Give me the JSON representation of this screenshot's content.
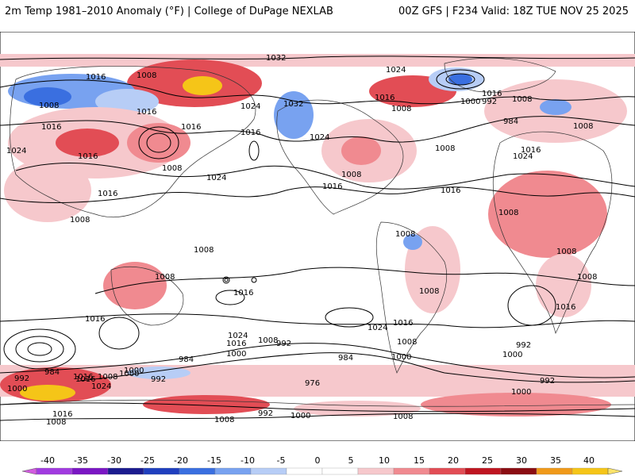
{
  "header": {
    "left_title": "2m Temp 1981–2010 Anomaly (°F) | College of DuPage NEXLAB",
    "right_title": "00Z GFS | F234 Valid: 18Z TUE NOV 25 2025"
  },
  "map": {
    "variable": "2m temperature anomaly",
    "units": "°F",
    "contour_field": "sea level pressure (mb)",
    "isobar_labels": [
      "1032",
      "1016",
      "1008",
      "1016",
      "1032",
      "1024",
      "1024",
      "1016",
      "1000",
      "992",
      "1008",
      "1008",
      "1016",
      "1016",
      "1016",
      "1024",
      "1024",
      "1016",
      "1008",
      "1016",
      "1008",
      "1016",
      "1008",
      "1024",
      "1016",
      "1008",
      "984",
      "1008",
      "1016",
      "1024",
      "1008",
      "1016",
      "1008",
      "1008",
      "1008",
      "1008",
      "1008",
      "1016",
      "1016",
      "1008",
      "1016",
      "1024",
      "1016",
      "1008",
      "992",
      "1008",
      "1008",
      "1016",
      "1000",
      "1024",
      "1016",
      "984",
      "984",
      "1000",
      "1000",
      "992",
      "976",
      "1000",
      "1008",
      "992",
      "1000",
      "992",
      "984",
      "1016",
      "1024",
      "1000",
      "992",
      "1000",
      "1008",
      "992",
      "1000",
      "1008",
      "1016",
      "1008"
    ]
  },
  "colorbar": {
    "ticks": [
      "-40",
      "-35",
      "-30",
      "-25",
      "-20",
      "-15",
      "-10",
      "-5",
      "0",
      "5",
      "10",
      "15",
      "20",
      "25",
      "30",
      "35",
      "40"
    ],
    "colors": [
      "#d25be0",
      "#a13be0",
      "#7a16c4",
      "#1b1b8f",
      "#1f3fbf",
      "#3a6fe0",
      "#78a2f0",
      "#b7cdf6",
      "#ffffff",
      "#ffffff",
      "#f6c8cc",
      "#f08a90",
      "#e24d55",
      "#bf1520",
      "#8b0d12",
      "#f09a1a",
      "#f5c518",
      "#fbe36a"
    ]
  }
}
